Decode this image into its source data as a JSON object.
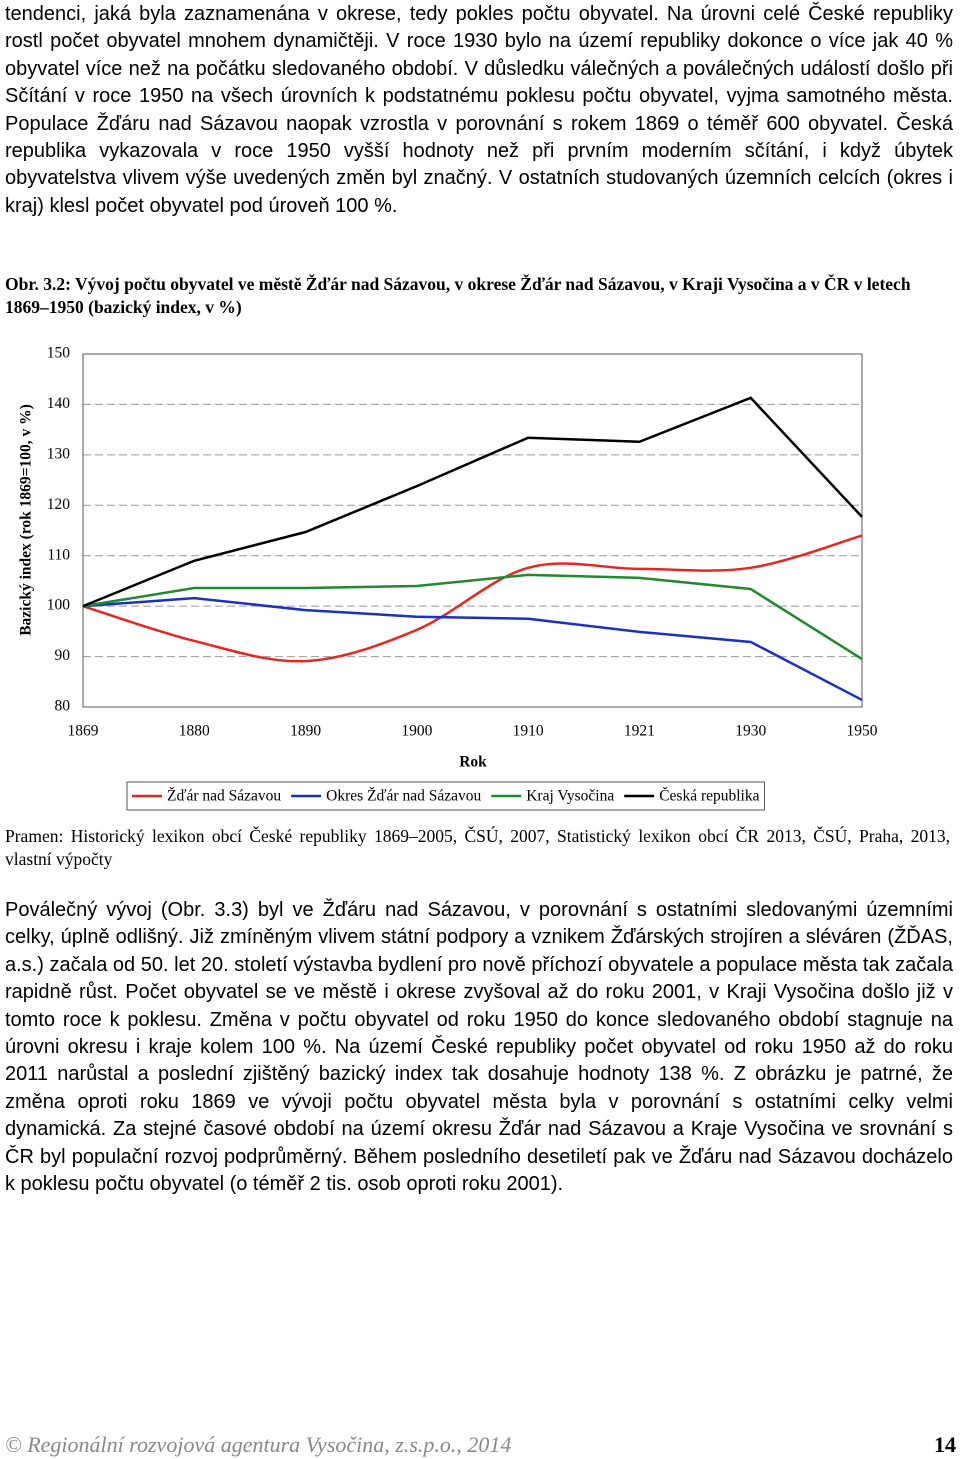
{
  "paragraph_1": "tendenci, jaká byla zaznamenána v okrese, tedy pokles počtu obyvatel. Na úrovni celé České republiky rostl počet obyvatel mnohem dynamičtěji. V roce 1930 bylo na území republiky dokonce o více jak 40 % obyvatel více než na počátku sledovaného období. V důsledku válečných a poválečných událostí došlo při Sčítání v roce 1950 na všech úrovních k podstatnému poklesu počtu obyvatel, vyjma samotného města. Populace Žďáru nad Sázavou naopak vzrostla v porovnání s rokem 1869 o téměř 600 obyvatel. Česká republika vykazovala v roce 1950 vyšší hodnoty než při prvním moderním sčítání, i když úbytek obyvatelstva vlivem výše uvedených změn byl značný. V ostatních studovaných územních celcích (okres i kraj) klesl počet obyvatel pod úroveň 100 %.",
  "figure": {
    "caption": "Obr. 3.2: Vývoj počtu obyvatel ve městě Žďár nad Sázavou, v okrese Žďár nad Sázavou, v Kraji Vysočina a v ČR v letech 1869–1950 (bazický index, v %)"
  },
  "chart_data": {
    "type": "line",
    "x_label": "Rok",
    "y_label": "Bazický index (rok 1869=100, v %)",
    "categories": [
      "1869",
      "1880",
      "1890",
      "1900",
      "1910",
      "1921",
      "1930",
      "1950"
    ],
    "ylim": [
      80,
      150
    ],
    "yticks": [
      80,
      90,
      100,
      110,
      120,
      130,
      140,
      150
    ],
    "grid": true,
    "legend": "bottom",
    "series": [
      {
        "name": "Žďár nad Sázavou",
        "color": "#e8261e",
        "smooth": true,
        "values": [
          100,
          93.1,
          89.1,
          95.3,
          107.6,
          107.4,
          107.6,
          114
        ]
      },
      {
        "name": "Okres Žďár nad Sázavou",
        "color": "#1a2fc4",
        "values": [
          100,
          101.6,
          99.2,
          97.9,
          97.5,
          94.9,
          92.9,
          81.4
        ]
      },
      {
        "name": "Kraj Vysočina",
        "color": "#1f8a2e",
        "values": [
          100,
          103.6,
          103.6,
          104,
          106.2,
          105.6,
          103.4,
          89.5
        ]
      },
      {
        "name": "Česká republika",
        "color": "#000000",
        "values": [
          100,
          109,
          114.7,
          123.8,
          133.4,
          132.6,
          141.3,
          117.7
        ]
      }
    ]
  },
  "source": "Pramen: Historický lexikon obcí České republiky 1869–2005, ČSÚ, 2007, Statistický lexikon obcí ČR 2013, ČSÚ, Praha, 2013, vlastní výpočty",
  "paragraph_2": "Poválečný vývoj (Obr. 3.3) byl ve Žďáru nad Sázavou, v porovnání s ostatními sledovanými územními celky, úplně odlišný. Již zmíněným vlivem státní podpory a vznikem Žďárských strojíren a sléváren (ŽĎAS, a.s.) začala od 50. let 20. století výstavba bydlení pro nově příchozí obyvatele a populace města tak začala rapidně růst. Počet obyvatel se ve městě i okrese zvyšoval až do roku 2001, v Kraji Vysočina došlo již v tomto roce k poklesu. Změna v počtu obyvatel od roku 1950 do konce sledovaného období stagnuje na úrovni okresu i kraje kolem 100 %. Na území České republiky počet obyvatel od roku 1950 až do roku 2011 narůstal a poslední zjištěný bazický index tak dosahuje hodnoty 138 %. Z obrázku je patrné, že změna oproti roku 1869 ve vývoji počtu obyvatel města byla v porovnání s ostatními celky velmi dynamická. Za stejné časové období na území okresu Žďár nad Sázavou a Kraje Vysočina ve srovnání s ČR byl populační rozvoj podprůměrný. Během posledního desetiletí pak ve Žďáru nad Sázavou docházelo k poklesu počtu obyvatel (o téměř 2 tis. osob oproti roku 2001).",
  "footer": {
    "text": "© Regionální rozvojová agentura Vysočina, z.s.p.o., 2014",
    "page": "14"
  }
}
